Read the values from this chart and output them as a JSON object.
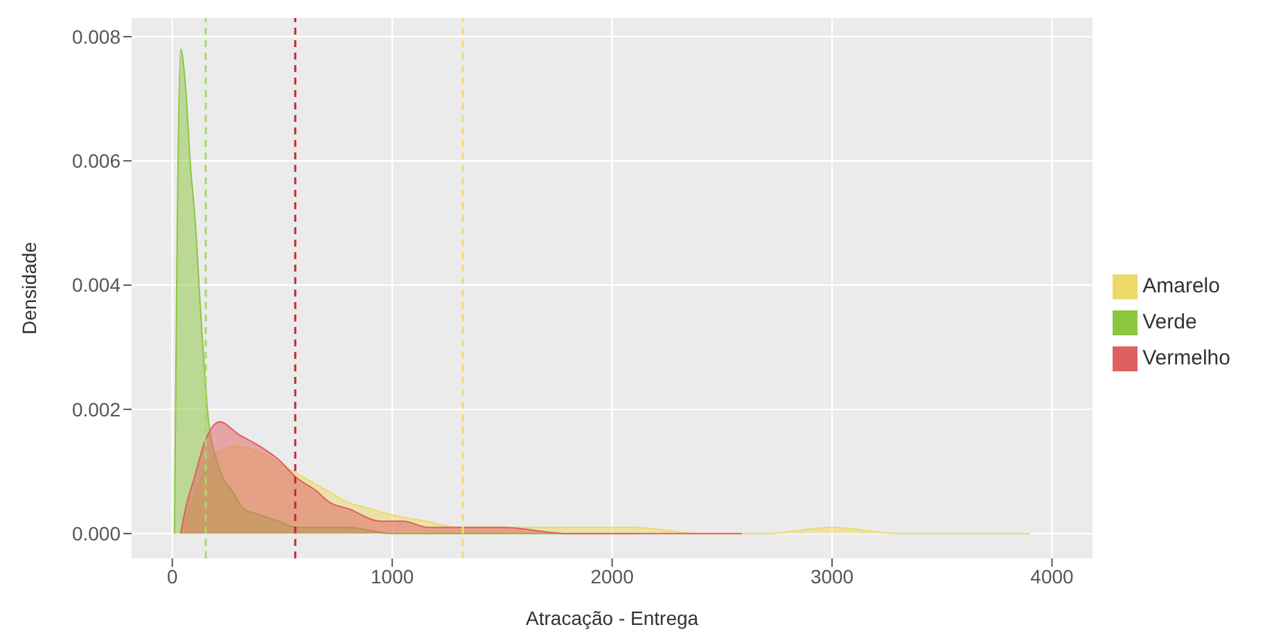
{
  "chart_data": {
    "type": "area",
    "xlabel": "Atracação - Entrega",
    "ylabel": "Densidade",
    "xlim": [
      -185,
      4185
    ],
    "xticks": [
      0,
      1000,
      2000,
      3000,
      4000
    ],
    "ylim": [
      -0.0004,
      0.0083
    ],
    "yticks": [
      {
        "value": 0,
        "label": "0.000"
      },
      {
        "value": 0.002,
        "label": "0.002"
      },
      {
        "value": 0.004,
        "label": "0.004"
      },
      {
        "value": 0.006,
        "label": "0.006"
      },
      {
        "value": 0.008,
        "label": "0.008"
      }
    ],
    "grid": true,
    "legend": "right",
    "ref_lines": [
      {
        "axis": "x",
        "value": 152,
        "color": "#a6d96a",
        "line_style": "dashed"
      },
      {
        "axis": "x",
        "value": 1321,
        "color": "#f0dc6e",
        "line_style": "dashed"
      },
      {
        "axis": "x",
        "value": 559,
        "color": "#c0283a",
        "line_style": "dashed"
      }
    ],
    "series": [
      {
        "name": "Amarelo",
        "color": "#ecd96a",
        "x": [
          40,
          100,
          200,
          300,
          400,
          500,
          600,
          700,
          800,
          900,
          1000,
          1150,
          1300,
          1500,
          1800,
          2100,
          2400,
          2700,
          3000,
          3300,
          3600,
          3900
        ],
        "values": [
          0,
          0.0006,
          0.0013,
          0.0014,
          0.0013,
          0.0011,
          0.0009,
          0.0007,
          0.0005,
          0.0004,
          0.0003,
          0.0002,
          0.0001,
          0.0001,
          0.0001,
          0.0001,
          0,
          0,
          0.0001,
          0,
          0,
          0
        ]
      },
      {
        "name": "Verde",
        "color": "#8cc63f",
        "x": [
          10,
          38,
          60,
          83,
          105,
          130,
          165,
          200,
          229,
          270,
          324,
          400,
          483,
          560,
          673,
          800,
          1000,
          1500,
          2000,
          2100
        ],
        "values": [
          0,
          0.0078,
          0.0072,
          0.0059,
          0.005,
          0.0035,
          0.0018,
          0.0012,
          0.0009,
          0.0007,
          0.0004,
          0.0003,
          0.0002,
          0.0001,
          0.0001,
          0.0001,
          0,
          0,
          0,
          0
        ]
      },
      {
        "name": "Vermelho",
        "color": "#e06060",
        "x": [
          38,
          60,
          100,
          150,
          216,
          300,
          400,
          480,
          565,
          650,
          717,
          800,
          946,
          1050,
          1162,
          1327,
          1500,
          1800,
          2100,
          2400,
          2590
        ],
        "values": [
          0,
          0.0004,
          0.0009,
          0.0015,
          0.0018,
          0.0016,
          0.0014,
          0.0012,
          0.0009,
          0.0007,
          0.0005,
          0.0004,
          0.0002,
          0.0002,
          0.0001,
          0.0001,
          0.0001,
          0,
          0,
          0,
          0
        ]
      }
    ]
  }
}
